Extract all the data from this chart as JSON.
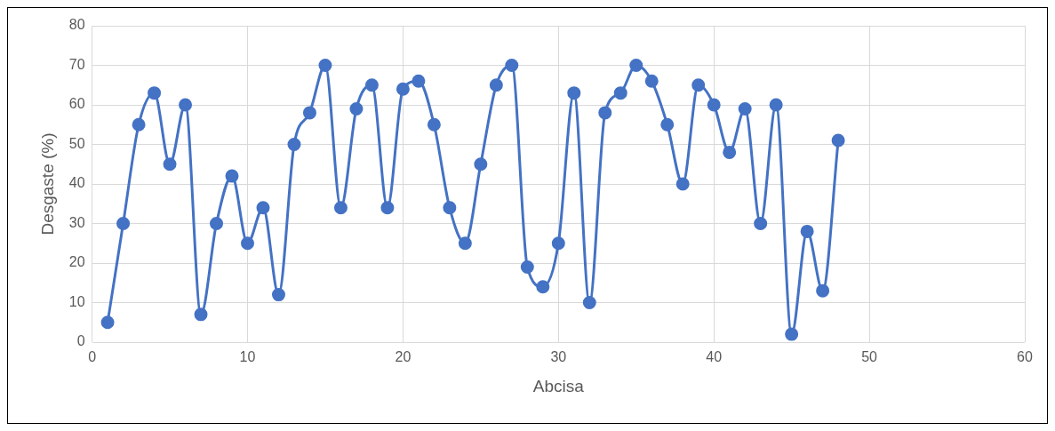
{
  "chart_data": {
    "type": "line",
    "xlabel": "Abcisa",
    "ylabel": "Desgaste (%)",
    "x": [
      1,
      2,
      3,
      4,
      5,
      6,
      7,
      8,
      9,
      10,
      11,
      12,
      13,
      14,
      15,
      16,
      17,
      18,
      19,
      20,
      21,
      22,
      23,
      24,
      25,
      26,
      27,
      28,
      29,
      30,
      31,
      32,
      33,
      34,
      35,
      36,
      37,
      38,
      39,
      40,
      41,
      42,
      43,
      44,
      45,
      46,
      47,
      48
    ],
    "series": [
      {
        "color": "#4472c4",
        "values": [
          5,
          30,
          55,
          63,
          45,
          60,
          7,
          30,
          42,
          25,
          34,
          12,
          50,
          58,
          70,
          34,
          59,
          65,
          34,
          64,
          66,
          55,
          34,
          25,
          45,
          65,
          70,
          19,
          14,
          25,
          63,
          10,
          58,
          63,
          70,
          66,
          55,
          40,
          65,
          60,
          48,
          59,
          30,
          60,
          2,
          28,
          13,
          51
        ]
      }
    ],
    "xlim": [
      0,
      60
    ],
    "xticks": [
      0,
      10,
      20,
      30,
      40,
      50,
      60
    ],
    "ylim": [
      0,
      80
    ],
    "yticks": [
      0,
      10,
      20,
      30,
      40,
      50,
      60,
      70,
      80
    ],
    "grid": true,
    "legend": false,
    "marker": "circle",
    "line_style": "solid"
  }
}
